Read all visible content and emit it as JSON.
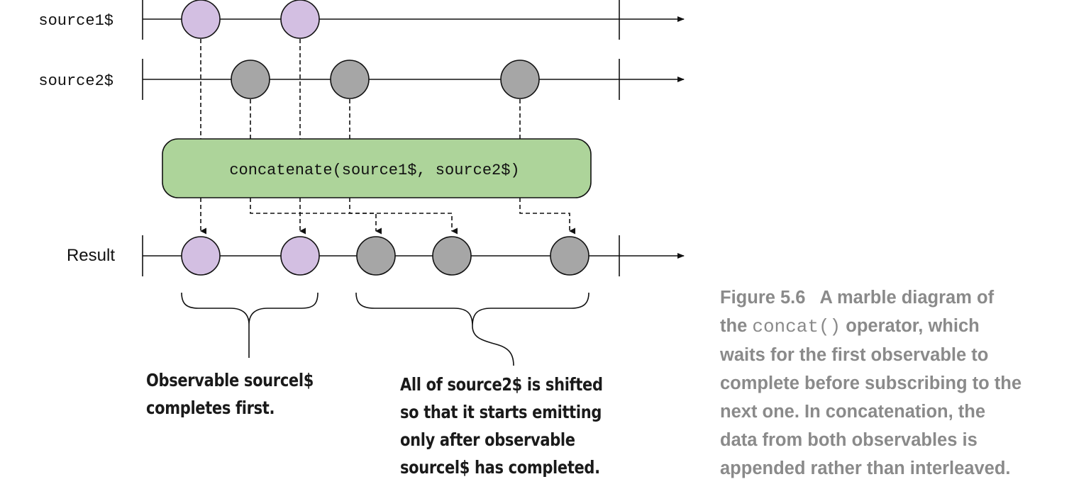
{
  "diagram": {
    "timelines": [
      {
        "id": "source1",
        "label": "source1$"
      },
      {
        "id": "source2",
        "label": "source2$"
      },
      {
        "id": "result",
        "label": "Result"
      }
    ],
    "operator_label": "concatenate(source1$, source2$)",
    "colors": {
      "source1_marble": "#d3bfe2",
      "source2_marble": "#a6a6a6",
      "operator_fill": "#add49a",
      "line": "#111111"
    }
  },
  "annotations": {
    "source1": [
      "Observable sourcel$",
      "completes first."
    ],
    "source2": [
      "All of source2$ is shifted",
      "so that it starts emitting",
      "only after observable",
      "sourcel$ has completed."
    ]
  },
  "caption": {
    "label": "Figure 5.6",
    "line1": "A marble diagram of",
    "line2_pre": "the ",
    "line2_code": "concat()",
    "line2_post": " operator, which",
    "line3": "waits for the first observable to",
    "line4": "complete before subscribing to the",
    "line5": "next one. In concatenation, the",
    "line6": "data from both observables is",
    "line7": "appended rather than interleaved."
  }
}
